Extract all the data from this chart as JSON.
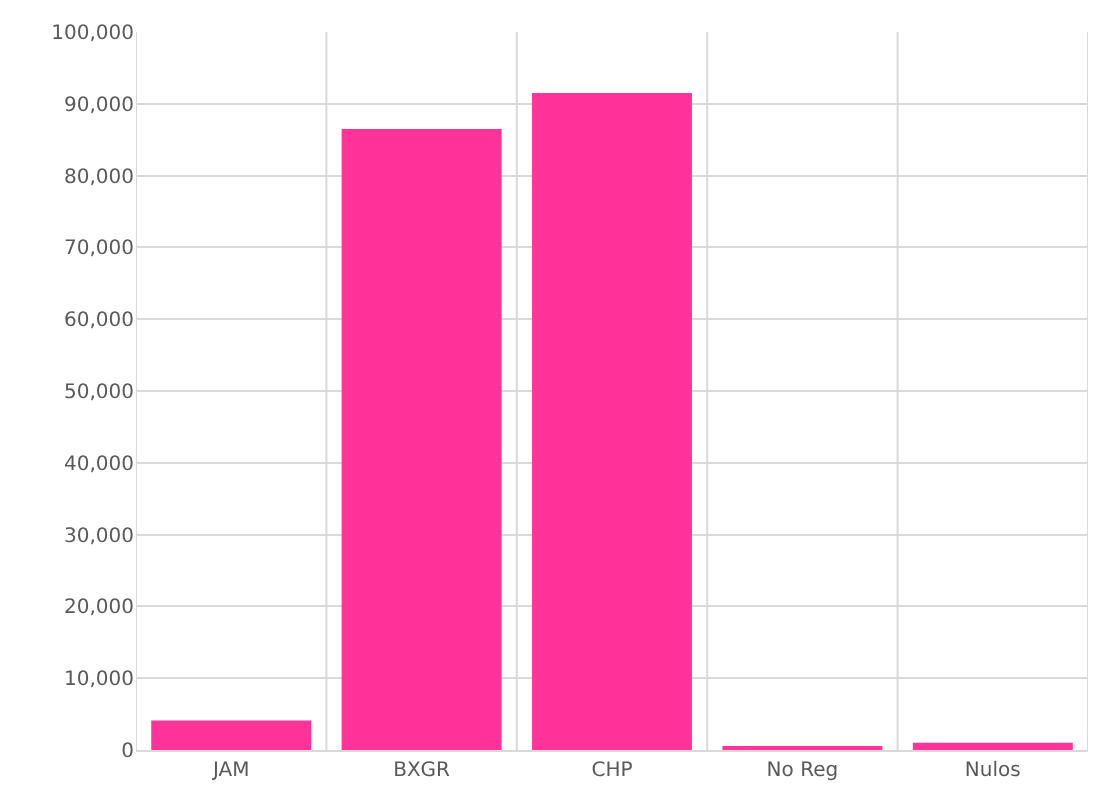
{
  "chart_data": {
    "type": "bar",
    "categories": [
      "JAM",
      "BXGR",
      "CHP",
      "No Reg",
      "Nulos"
    ],
    "values": [
      4100,
      86500,
      91500,
      500,
      1000
    ],
    "color": "#ff3399",
    "ylim": [
      0,
      100000
    ],
    "yticks": [
      {
        "value": 0,
        "label": "0"
      },
      {
        "value": 10000,
        "label": "10,000"
      },
      {
        "value": 20000,
        "label": "20,000"
      },
      {
        "value": 30000,
        "label": "30,000"
      },
      {
        "value": 40000,
        "label": "40,000"
      },
      {
        "value": 50000,
        "label": "50,000"
      },
      {
        "value": 60000,
        "label": "60,000"
      },
      {
        "value": 70000,
        "label": "70,000"
      },
      {
        "value": 80000,
        "label": "80,000"
      },
      {
        "value": 90000,
        "label": "90,000"
      },
      {
        "value": 100000,
        "label": "100,000"
      }
    ],
    "grid": true
  }
}
